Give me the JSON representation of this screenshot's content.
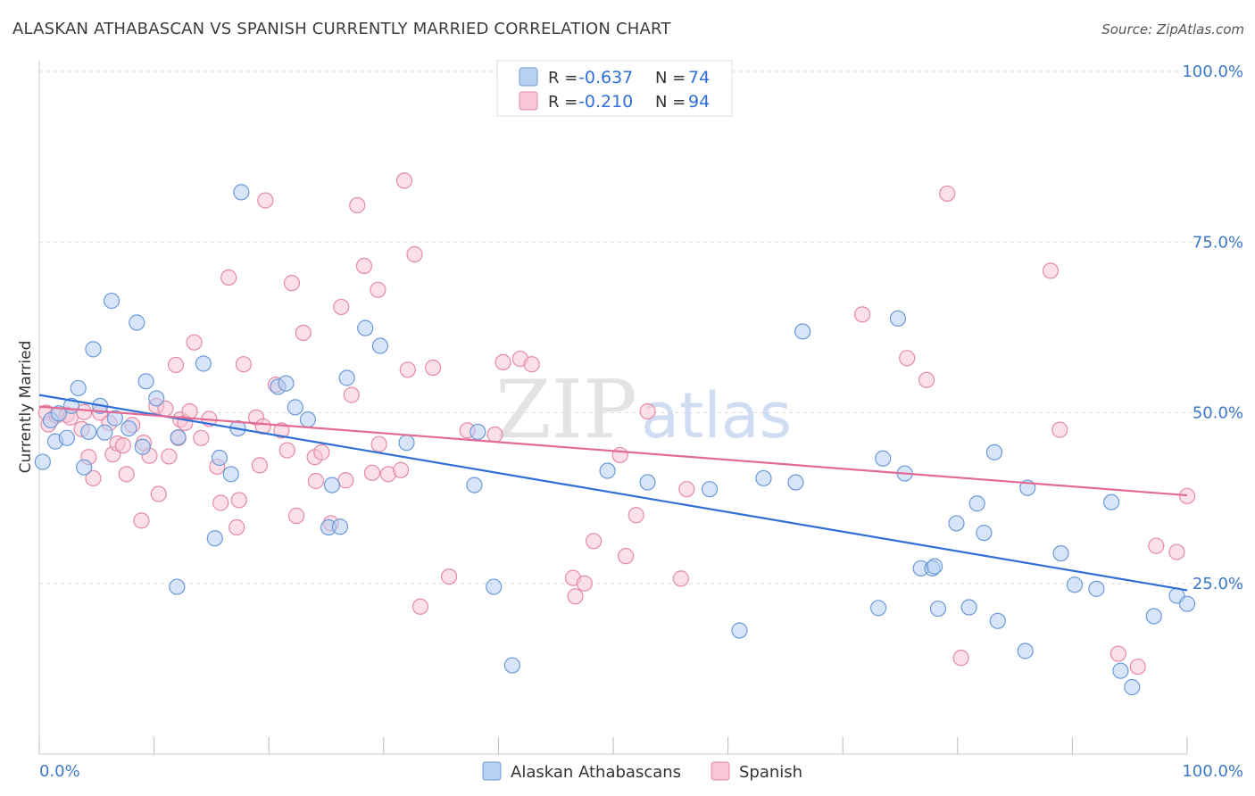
{
  "title": "ALASKAN ATHABASCAN VS SPANISH CURRENTLY MARRIED CORRELATION CHART",
  "source": "Source: ZipAtlas.com",
  "colors": {
    "blue_fill": "#b8d0f2",
    "blue_stroke": "#6a9ad8",
    "blue_line": "#2f6fd6",
    "pink_fill": "#f8c6d6",
    "pink_stroke": "#e58aa6",
    "pink_line": "#e26a94",
    "axis_text": "#3d78c7",
    "grid": "#dddddd"
  },
  "legend_top": {
    "rows": [
      {
        "r_label": "R =",
        "r_value": "-0.637",
        "n_label": "N =",
        "n_value": "74"
      },
      {
        "r_label": "R =",
        "r_value": "-0.210",
        "n_label": "N =",
        "n_value": "94"
      }
    ]
  },
  "watermark": {
    "zip": "ZIP",
    "atlas": "atlas"
  },
  "chart_data": {
    "type": "scatter",
    "title": "ALASKAN ATHABASCAN VS SPANISH CURRENTLY MARRIED CORRELATION CHART",
    "xlabel": "",
    "ylabel": "Currently Married",
    "xlim": [
      0,
      100
    ],
    "ylim": [
      0,
      100
    ],
    "x_tick_labels": [
      "0.0%",
      "100.0%"
    ],
    "y_ticks": [
      25,
      50,
      75,
      100
    ],
    "y_tick_labels": [
      "25.0%",
      "50.0%",
      "75.0%",
      "100.0%"
    ],
    "grid": true,
    "legend_placement": "bottom-center",
    "series": [
      {
        "name": "Alaskan Athabascans",
        "color": "#b8d0f2",
        "trend": {
          "x": [
            0,
            100
          ],
          "y": [
            52.6,
            24.0
          ]
        },
        "points": [
          [
            0.3,
            42.8
          ],
          [
            1.0,
            48.9
          ],
          [
            1.4,
            45.8
          ],
          [
            1.7,
            49.9
          ],
          [
            2.4,
            46.3
          ],
          [
            2.8,
            51.0
          ],
          [
            3.4,
            53.6
          ],
          [
            3.9,
            42.0
          ],
          [
            4.3,
            47.2
          ],
          [
            4.7,
            59.3
          ],
          [
            5.3,
            51.0
          ],
          [
            5.7,
            47.1
          ],
          [
            6.3,
            66.4
          ],
          [
            6.6,
            49.2
          ],
          [
            7.8,
            47.7
          ],
          [
            8.5,
            63.2
          ],
          [
            9.0,
            45.0
          ],
          [
            9.3,
            54.6
          ],
          [
            10.2,
            52.1
          ],
          [
            12.0,
            24.5
          ],
          [
            12.1,
            46.4
          ],
          [
            14.3,
            57.2
          ],
          [
            15.3,
            31.6
          ],
          [
            15.7,
            43.4
          ],
          [
            16.7,
            41.0
          ],
          [
            17.3,
            47.7
          ],
          [
            17.6,
            82.3
          ],
          [
            20.8,
            53.8
          ],
          [
            21.5,
            54.3
          ],
          [
            22.3,
            50.8
          ],
          [
            23.4,
            49.0
          ],
          [
            25.2,
            33.2
          ],
          [
            25.5,
            39.4
          ],
          [
            26.2,
            33.3
          ],
          [
            26.8,
            55.1
          ],
          [
            28.4,
            62.4
          ],
          [
            29.7,
            59.8
          ],
          [
            32.0,
            45.6
          ],
          [
            37.9,
            39.4
          ],
          [
            38.2,
            47.2
          ],
          [
            39.6,
            24.5
          ],
          [
            41.2,
            13.0
          ],
          [
            49.5,
            41.5
          ],
          [
            53.0,
            39.8
          ],
          [
            58.4,
            38.8
          ],
          [
            61.0,
            18.1
          ],
          [
            63.1,
            40.4
          ],
          [
            65.9,
            39.8
          ],
          [
            66.5,
            61.9
          ],
          [
            73.1,
            21.4
          ],
          [
            73.5,
            43.3
          ],
          [
            74.8,
            63.8
          ],
          [
            75.4,
            41.1
          ],
          [
            76.8,
            27.2
          ],
          [
            77.8,
            27.2
          ],
          [
            78.0,
            27.5
          ],
          [
            78.3,
            21.3
          ],
          [
            79.9,
            33.8
          ],
          [
            81.0,
            21.5
          ],
          [
            81.7,
            36.7
          ],
          [
            82.3,
            32.4
          ],
          [
            83.2,
            44.2
          ],
          [
            83.5,
            19.5
          ],
          [
            85.9,
            15.1
          ],
          [
            86.1,
            39.0
          ],
          [
            89.0,
            29.4
          ],
          [
            90.2,
            24.8
          ],
          [
            92.1,
            24.2
          ],
          [
            93.4,
            36.9
          ],
          [
            94.2,
            12.2
          ],
          [
            95.2,
            9.8
          ],
          [
            97.1,
            20.2
          ],
          [
            99.1,
            23.2
          ],
          [
            100.0,
            22.0
          ]
        ]
      },
      {
        "name": "Spanish",
        "color": "#f8c6d6",
        "trend": {
          "x": [
            0,
            100
          ],
          "y": [
            50.9,
            37.9
          ]
        },
        "points": [
          [
            0.6,
            50.0
          ],
          [
            0.8,
            48.3
          ],
          [
            1.5,
            49.6
          ],
          [
            2.4,
            49.7
          ],
          [
            2.7,
            49.3
          ],
          [
            3.7,
            47.6
          ],
          [
            3.9,
            50.1
          ],
          [
            4.3,
            43.5
          ],
          [
            4.7,
            40.4
          ],
          [
            5.3,
            50.0
          ],
          [
            6.1,
            48.5
          ],
          [
            6.4,
            43.9
          ],
          [
            6.8,
            45.5
          ],
          [
            7.3,
            45.2
          ],
          [
            7.6,
            41.0
          ],
          [
            8.1,
            48.2
          ],
          [
            8.9,
            34.2
          ],
          [
            9.1,
            45.6
          ],
          [
            9.6,
            43.7
          ],
          [
            10.2,
            51.0
          ],
          [
            10.4,
            38.1
          ],
          [
            11.0,
            50.6
          ],
          [
            11.3,
            43.6
          ],
          [
            11.9,
            57.0
          ],
          [
            12.1,
            46.3
          ],
          [
            12.3,
            49.0
          ],
          [
            12.7,
            48.5
          ],
          [
            13.1,
            50.2
          ],
          [
            13.5,
            60.3
          ],
          [
            14.1,
            46.3
          ],
          [
            14.8,
            49.1
          ],
          [
            15.5,
            42.1
          ],
          [
            15.8,
            36.8
          ],
          [
            16.5,
            69.8
          ],
          [
            17.2,
            33.2
          ],
          [
            17.4,
            37.2
          ],
          [
            17.8,
            57.1
          ],
          [
            18.9,
            49.3
          ],
          [
            19.2,
            42.3
          ],
          [
            19.5,
            48.0
          ],
          [
            19.7,
            81.1
          ],
          [
            20.6,
            54.1
          ],
          [
            21.1,
            47.4
          ],
          [
            21.6,
            44.5
          ],
          [
            22.0,
            69.0
          ],
          [
            22.4,
            34.9
          ],
          [
            23.0,
            61.7
          ],
          [
            24.0,
            43.5
          ],
          [
            24.1,
            40.0
          ],
          [
            24.6,
            44.2
          ],
          [
            25.4,
            33.8
          ],
          [
            26.3,
            65.5
          ],
          [
            26.7,
            40.1
          ],
          [
            27.2,
            52.6
          ],
          [
            27.7,
            80.4
          ],
          [
            28.3,
            71.5
          ],
          [
            29.0,
            41.2
          ],
          [
            29.5,
            68.0
          ],
          [
            29.6,
            45.4
          ],
          [
            30.4,
            41.0
          ],
          [
            31.5,
            41.6
          ],
          [
            31.8,
            84.0
          ],
          [
            32.1,
            56.3
          ],
          [
            32.7,
            73.2
          ],
          [
            33.2,
            21.6
          ],
          [
            34.3,
            56.6
          ],
          [
            35.7,
            26.0
          ],
          [
            37.3,
            47.4
          ],
          [
            39.7,
            46.8
          ],
          [
            40.4,
            57.4
          ],
          [
            41.9,
            57.9
          ],
          [
            42.9,
            57.1
          ],
          [
            46.5,
            25.8
          ],
          [
            46.7,
            23.1
          ],
          [
            47.5,
            25.0
          ],
          [
            48.3,
            31.2
          ],
          [
            50.6,
            43.8
          ],
          [
            51.1,
            29.0
          ],
          [
            52.0,
            35.0
          ],
          [
            53.0,
            50.2
          ],
          [
            55.9,
            25.7
          ],
          [
            56.4,
            38.8
          ],
          [
            71.7,
            64.4
          ],
          [
            75.6,
            58.0
          ],
          [
            77.3,
            54.8
          ],
          [
            79.1,
            82.1
          ],
          [
            80.3,
            14.1
          ],
          [
            88.1,
            70.8
          ],
          [
            88.9,
            47.5
          ],
          [
            94.0,
            14.7
          ],
          [
            95.7,
            12.8
          ],
          [
            97.3,
            30.5
          ],
          [
            99.1,
            29.6
          ],
          [
            100.0,
            37.8
          ]
        ]
      }
    ]
  }
}
